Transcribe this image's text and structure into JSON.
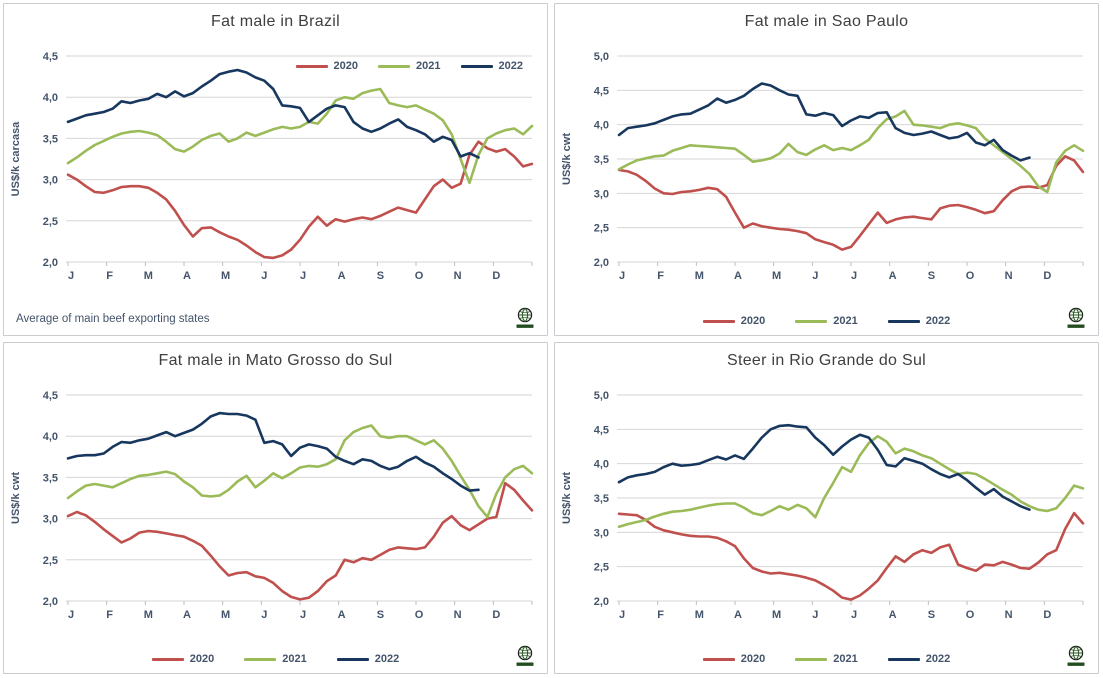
{
  "months": [
    "J",
    "F",
    "M",
    "A",
    "M",
    "J",
    "J",
    "A",
    "S",
    "O",
    "N",
    "D"
  ],
  "legend_labels": [
    "2020",
    "2021",
    "2022"
  ],
  "colors": {
    "s2020": "#C0504D",
    "s2021": "#9BBB59",
    "s2022": "#17375E",
    "grid": "#d6d6d6",
    "axis_line": "#bfbfbf",
    "axis_text": "#44546a",
    "title_text": "#3f3f3f",
    "panel_border": "#c9cdd2"
  },
  "chart_data": [
    {
      "type": "line",
      "title": "Fat male in Brazil",
      "ylabel": "US$/k carcasa",
      "ylim": [
        2.0,
        4.5
      ],
      "ytick_step": 0.5,
      "x_unit": "weeks of year, Jan-Dec",
      "legend_position": "inside-top-right",
      "note": "Average of main beef exporting states",
      "grid": true,
      "series": [
        {
          "name": "2020",
          "color": "#C0504D",
          "values": [
            3.06,
            3.0,
            2.92,
            2.85,
            2.84,
            2.87,
            2.91,
            2.92,
            2.92,
            2.9,
            2.84,
            2.76,
            2.62,
            2.45,
            2.31,
            2.41,
            2.42,
            2.36,
            2.31,
            2.27,
            2.2,
            2.12,
            2.06,
            2.05,
            2.08,
            2.15,
            2.27,
            2.43,
            2.55,
            2.44,
            2.52,
            2.49,
            2.52,
            2.54,
            2.52,
            2.56,
            2.61,
            2.66,
            2.63,
            2.6,
            2.76,
            2.92,
            3.0,
            2.9,
            2.95,
            3.3,
            3.46,
            3.38,
            3.34,
            3.37,
            3.28,
            3.16,
            3.19
          ]
        },
        {
          "name": "2021",
          "color": "#9BBB59",
          "values": [
            3.2,
            3.27,
            3.35,
            3.42,
            3.47,
            3.52,
            3.56,
            3.58,
            3.59,
            3.57,
            3.54,
            3.46,
            3.37,
            3.34,
            3.4,
            3.48,
            3.53,
            3.56,
            3.46,
            3.5,
            3.57,
            3.53,
            3.57,
            3.61,
            3.64,
            3.62,
            3.64,
            3.7,
            3.68,
            3.8,
            3.96,
            4.0,
            3.98,
            4.05,
            4.08,
            4.1,
            3.93,
            3.9,
            3.88,
            3.9,
            3.85,
            3.8,
            3.72,
            3.55,
            3.25,
            2.96,
            3.3,
            3.5,
            3.56,
            3.6,
            3.62,
            3.55,
            3.65
          ]
        },
        {
          "name": "2022",
          "color": "#17375E",
          "values": [
            3.7,
            3.74,
            3.78,
            3.8,
            3.82,
            3.86,
            3.95,
            3.93,
            3.96,
            3.98,
            4.04,
            4.0,
            4.07,
            4.01,
            4.05,
            4.13,
            4.2,
            4.28,
            4.31,
            4.33,
            4.3,
            4.24,
            4.2,
            4.1,
            3.9,
            3.89,
            3.87,
            3.7,
            3.78,
            3.86,
            3.9,
            3.88,
            3.7,
            3.62,
            3.58,
            3.62,
            3.68,
            3.73,
            3.64,
            3.6,
            3.55,
            3.46,
            3.52,
            3.48,
            3.28,
            3.32,
            3.27
          ]
        }
      ]
    },
    {
      "type": "line",
      "title": "Fat male in Sao Paulo",
      "ylabel": "US$/k cwt",
      "ylim": [
        2.0,
        5.0
      ],
      "ytick_step": 0.5,
      "x_unit": "weeks of year, Jan-Dec",
      "legend_position": "bottom-center",
      "grid": true,
      "series": [
        {
          "name": "2020",
          "color": "#C0504D",
          "values": [
            3.34,
            3.32,
            3.27,
            3.18,
            3.07,
            3.0,
            2.99,
            3.02,
            3.03,
            3.05,
            3.08,
            3.06,
            2.95,
            2.72,
            2.5,
            2.56,
            2.52,
            2.5,
            2.48,
            2.47,
            2.45,
            2.42,
            2.33,
            2.29,
            2.25,
            2.18,
            2.22,
            2.38,
            2.55,
            2.72,
            2.57,
            2.62,
            2.65,
            2.66,
            2.64,
            2.62,
            2.78,
            2.82,
            2.83,
            2.8,
            2.76,
            2.71,
            2.74,
            2.9,
            3.03,
            3.09,
            3.1,
            3.08,
            3.12,
            3.4,
            3.54,
            3.48,
            3.31
          ]
        },
        {
          "name": "2021",
          "color": "#9BBB59",
          "values": [
            3.35,
            3.42,
            3.48,
            3.51,
            3.54,
            3.55,
            3.62,
            3.66,
            3.7,
            3.69,
            3.68,
            3.67,
            3.66,
            3.65,
            3.56,
            3.46,
            3.48,
            3.51,
            3.58,
            3.72,
            3.6,
            3.56,
            3.64,
            3.7,
            3.63,
            3.66,
            3.63,
            3.7,
            3.78,
            3.95,
            4.08,
            4.12,
            4.2,
            4.0,
            3.99,
            3.97,
            3.95,
            4.0,
            4.02,
            3.99,
            3.95,
            3.8,
            3.7,
            3.6,
            3.5,
            3.4,
            3.28,
            3.1,
            3.02,
            3.45,
            3.62,
            3.7,
            3.62
          ]
        },
        {
          "name": "2022",
          "color": "#17375E",
          "values": [
            3.85,
            3.95,
            3.97,
            3.99,
            4.02,
            4.07,
            4.12,
            4.15,
            4.16,
            4.22,
            4.28,
            4.38,
            4.32,
            4.36,
            4.42,
            4.52,
            4.6,
            4.57,
            4.5,
            4.44,
            4.42,
            4.15,
            4.13,
            4.17,
            4.14,
            3.98,
            4.06,
            4.12,
            4.1,
            4.17,
            4.18,
            3.95,
            3.88,
            3.85,
            3.87,
            3.9,
            3.85,
            3.8,
            3.82,
            3.88,
            3.74,
            3.7,
            3.78,
            3.63,
            3.55,
            3.48,
            3.52
          ]
        }
      ]
    },
    {
      "type": "line",
      "title": "Fat male in Mato Grosso do Sul",
      "ylabel": "US$/k cwt",
      "ylim": [
        2.0,
        4.5
      ],
      "ytick_step": 0.5,
      "x_unit": "weeks of year, Jan-Dec",
      "legend_position": "bottom-center",
      "grid": true,
      "series": [
        {
          "name": "2020",
          "color": "#C0504D",
          "values": [
            3.03,
            3.08,
            3.04,
            2.96,
            2.87,
            2.79,
            2.71,
            2.76,
            2.83,
            2.85,
            2.84,
            2.82,
            2.8,
            2.78,
            2.73,
            2.67,
            2.55,
            2.42,
            2.31,
            2.34,
            2.35,
            2.3,
            2.28,
            2.22,
            2.12,
            2.05,
            2.02,
            2.04,
            2.12,
            2.24,
            2.31,
            2.5,
            2.47,
            2.52,
            2.5,
            2.56,
            2.62,
            2.65,
            2.64,
            2.63,
            2.65,
            2.78,
            2.95,
            3.03,
            2.92,
            2.86,
            2.93,
            3.0,
            3.02,
            3.43,
            3.35,
            3.22,
            3.1
          ]
        },
        {
          "name": "2021",
          "color": "#9BBB59",
          "values": [
            3.25,
            3.33,
            3.4,
            3.42,
            3.4,
            3.38,
            3.43,
            3.48,
            3.52,
            3.53,
            3.55,
            3.57,
            3.54,
            3.45,
            3.38,
            3.28,
            3.27,
            3.28,
            3.35,
            3.45,
            3.52,
            3.38,
            3.46,
            3.55,
            3.49,
            3.55,
            3.62,
            3.64,
            3.63,
            3.66,
            3.72,
            3.95,
            4.05,
            4.1,
            4.13,
            4.0,
            3.98,
            4.0,
            4.0,
            3.95,
            3.9,
            3.95,
            3.85,
            3.7,
            3.52,
            3.35,
            3.15,
            3.02,
            3.3,
            3.5,
            3.6,
            3.64,
            3.55
          ]
        },
        {
          "name": "2022",
          "color": "#17375E",
          "values": [
            3.73,
            3.76,
            3.77,
            3.77,
            3.79,
            3.87,
            3.93,
            3.92,
            3.95,
            3.97,
            4.01,
            4.05,
            4.0,
            4.04,
            4.08,
            4.15,
            4.24,
            4.28,
            4.27,
            4.27,
            4.25,
            4.2,
            3.92,
            3.94,
            3.9,
            3.76,
            3.86,
            3.9,
            3.88,
            3.85,
            3.75,
            3.7,
            3.66,
            3.72,
            3.7,
            3.64,
            3.6,
            3.63,
            3.7,
            3.75,
            3.68,
            3.63,
            3.55,
            3.48,
            3.4,
            3.34,
            3.35
          ]
        }
      ]
    },
    {
      "type": "line",
      "title": "Steer in Rio Grande do Sul",
      "ylabel": "US$/k cwt",
      "ylim": [
        2.0,
        5.0
      ],
      "ytick_step": 0.5,
      "x_unit": "weeks of year, Jan-Dec",
      "legend_position": "bottom-center",
      "grid": true,
      "series": [
        {
          "name": "2020",
          "color": "#C0504D",
          "values": [
            3.27,
            3.26,
            3.25,
            3.18,
            3.08,
            3.03,
            3.0,
            2.97,
            2.95,
            2.94,
            2.94,
            2.92,
            2.87,
            2.8,
            2.62,
            2.48,
            2.43,
            2.4,
            2.41,
            2.39,
            2.37,
            2.34,
            2.3,
            2.23,
            2.15,
            2.05,
            2.02,
            2.08,
            2.18,
            2.3,
            2.48,
            2.65,
            2.57,
            2.68,
            2.74,
            2.7,
            2.78,
            2.82,
            2.53,
            2.48,
            2.44,
            2.53,
            2.52,
            2.57,
            2.53,
            2.48,
            2.47,
            2.56,
            2.68,
            2.74,
            3.05,
            3.28,
            3.13
          ]
        },
        {
          "name": "2021",
          "color": "#9BBB59",
          "values": [
            3.08,
            3.12,
            3.15,
            3.18,
            3.23,
            3.27,
            3.3,
            3.31,
            3.33,
            3.36,
            3.39,
            3.41,
            3.42,
            3.42,
            3.36,
            3.28,
            3.25,
            3.31,
            3.38,
            3.33,
            3.4,
            3.35,
            3.22,
            3.5,
            3.72,
            3.95,
            3.88,
            4.12,
            4.3,
            4.4,
            4.32,
            4.15,
            4.22,
            4.18,
            4.12,
            4.08,
            4.0,
            3.92,
            3.85,
            3.87,
            3.85,
            3.78,
            3.7,
            3.62,
            3.55,
            3.45,
            3.38,
            3.33,
            3.31,
            3.35,
            3.5,
            3.68,
            3.64
          ]
        },
        {
          "name": "2022",
          "color": "#17375E",
          "values": [
            3.73,
            3.8,
            3.83,
            3.85,
            3.88,
            3.95,
            4.0,
            3.97,
            3.98,
            4.0,
            4.05,
            4.1,
            4.06,
            4.12,
            4.07,
            4.22,
            4.38,
            4.5,
            4.55,
            4.56,
            4.54,
            4.53,
            4.38,
            4.27,
            4.13,
            4.25,
            4.35,
            4.42,
            4.38,
            4.2,
            3.98,
            3.96,
            4.08,
            4.04,
            4.0,
            3.92,
            3.85,
            3.8,
            3.85,
            3.76,
            3.65,
            3.55,
            3.63,
            3.52,
            3.45,
            3.38,
            3.33
          ]
        }
      ]
    }
  ]
}
